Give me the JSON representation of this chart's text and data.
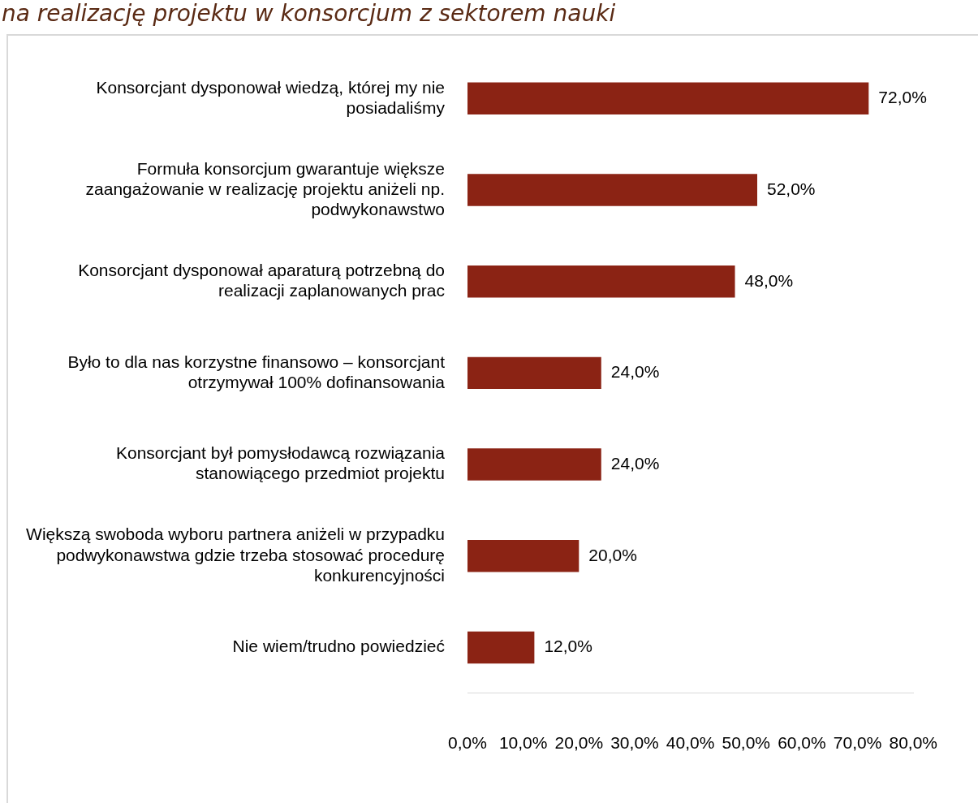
{
  "chart_data": {
    "type": "bar",
    "orientation": "horizontal",
    "title": "na realizację projektu w konsorcjum z sektorem nauki",
    "categories": [
      "Konsorcjant dysponował wiedzą, której my nie posiadaliśmy",
      "Formuła konsorcjum gwarantuje większe zaangażowanie w realizację projektu aniżeli np. podwykonawstwo",
      "Konsorcjant dysponował aparaturą potrzebną do realizacji zaplanowanych prac",
      "Było to dla nas korzystne finansowo – konsorcjant otrzymywał 100% dofinansowania",
      "Konsorcjant był pomysłodawcą rozwiązania stanowiącego przedmiot projektu",
      "Większą swoboda wyboru partnera aniżeli w przypadku podwykonawstwa gdzie trzeba stosować procedurę konkurencyjności",
      "Nie wiem/trudno powiedzieć"
    ],
    "values": [
      72,
      52,
      48,
      24,
      24,
      20,
      12
    ],
    "value_labels": [
      "72,0%",
      "52,0%",
      "48,0%",
      "24,0%",
      "24,0%",
      "20,0%",
      "12,0%"
    ],
    "color": "#8b2314",
    "xlim": [
      0,
      80
    ],
    "xticks": [
      {
        "value": 0,
        "label": "0,0%"
      },
      {
        "value": 10,
        "label": "10,0%"
      },
      {
        "value": 20,
        "label": "20,0%"
      },
      {
        "value": 30,
        "label": "30,0%"
      },
      {
        "value": 40,
        "label": "40,0%"
      },
      {
        "value": 50,
        "label": "50,0%"
      },
      {
        "value": 60,
        "label": "60,0%"
      },
      {
        "value": 70,
        "label": "70,0%"
      },
      {
        "value": 80,
        "label": "80,0%"
      }
    ],
    "grid": false,
    "legend": false
  }
}
